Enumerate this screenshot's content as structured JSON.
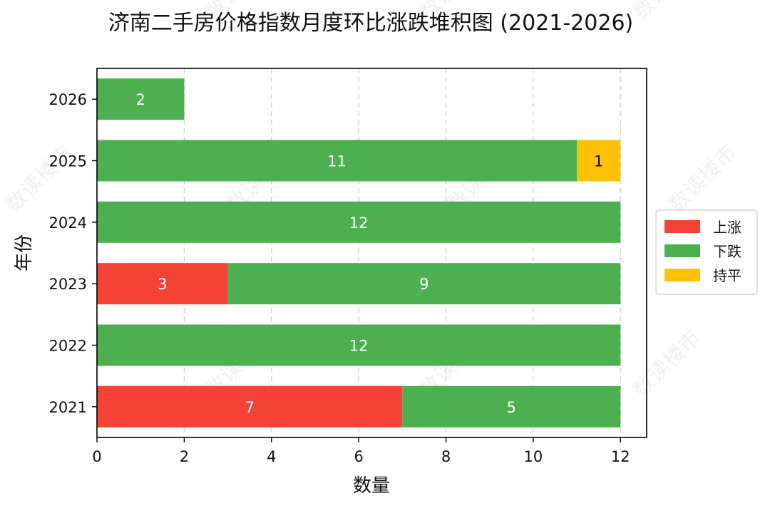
{
  "chart_data": {
    "type": "bar",
    "orientation": "horizontal",
    "stacked": true,
    "title": "济南二手房价格指数月度环比涨跌堆积图 (2021-2026)",
    "xlabel": "数量",
    "ylabel": "年份",
    "categories": [
      "2021",
      "2022",
      "2023",
      "2024",
      "2025",
      "2026"
    ],
    "series": [
      {
        "name": "上涨",
        "color": "#f44336",
        "values": [
          7,
          0,
          3,
          0,
          0,
          0
        ]
      },
      {
        "name": "下跌",
        "color": "#4caf50",
        "values": [
          5,
          12,
          9,
          12,
          11,
          2
        ]
      },
      {
        "name": "持平",
        "color": "#ffc107",
        "values": [
          0,
          0,
          0,
          0,
          1,
          0
        ]
      }
    ],
    "xlim": [
      0,
      12.6
    ],
    "xticks": [
      0,
      2,
      4,
      6,
      8,
      10,
      12
    ],
    "grid": "x-dashed",
    "legend_position": "right"
  },
  "watermark": "数读楼市"
}
